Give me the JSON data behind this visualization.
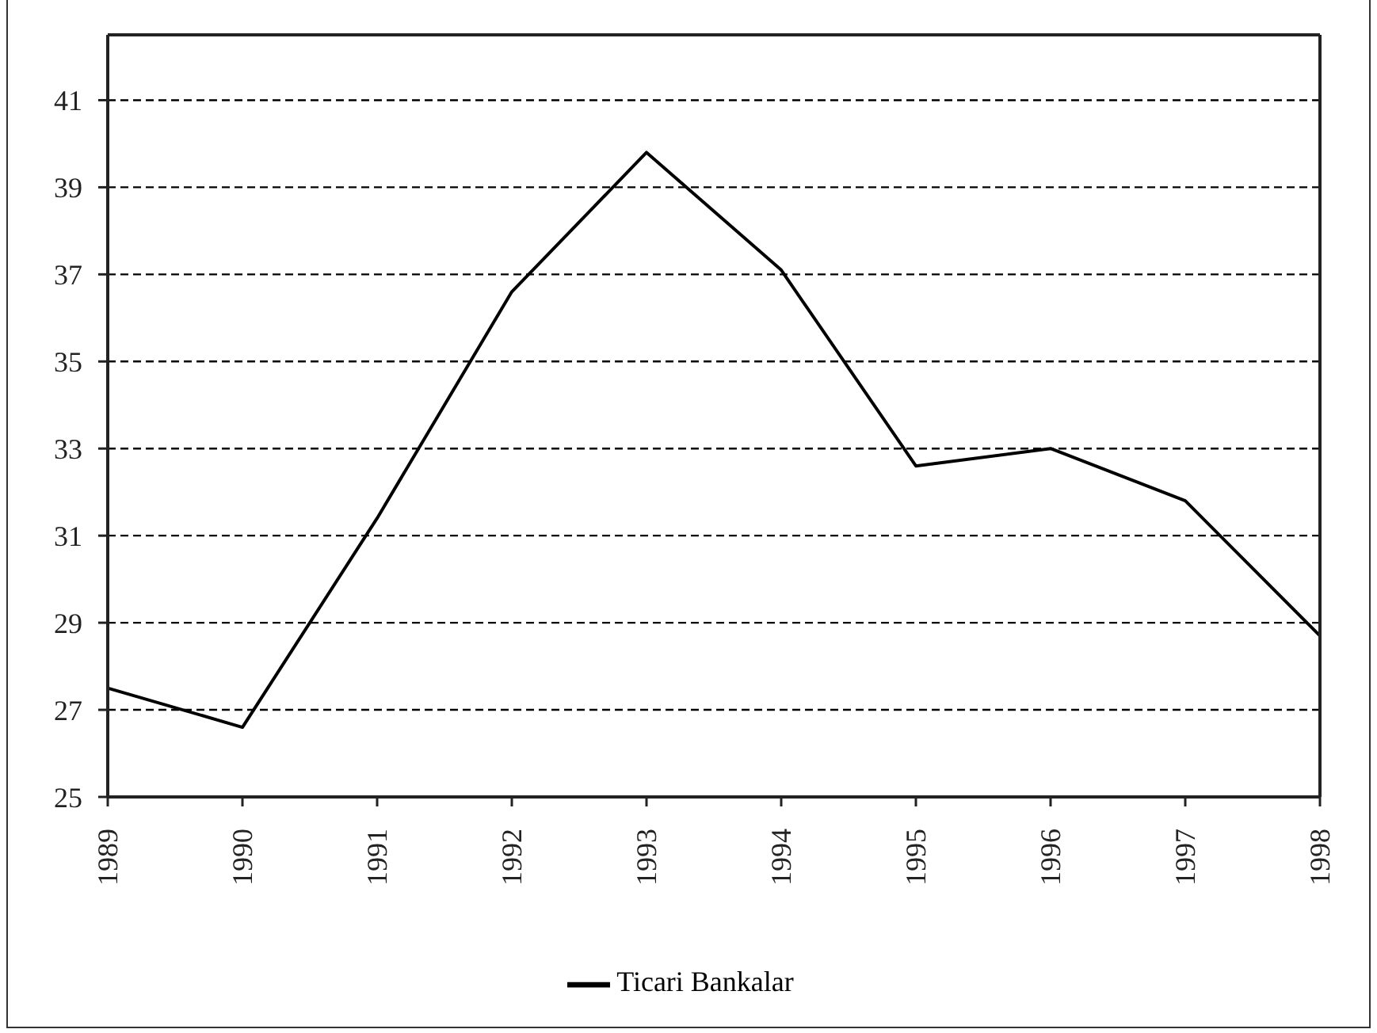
{
  "chart_data": {
    "type": "line",
    "categories": [
      "1989",
      "1990",
      "1991",
      "1992",
      "1993",
      "1994",
      "1995",
      "1996",
      "1997",
      "1998"
    ],
    "series": [
      {
        "name": "Ticari Bankalar",
        "color": "#000000",
        "values": [
          27.5,
          26.6,
          31.4,
          36.6,
          39.8,
          37.1,
          32.6,
          33.0,
          31.8,
          28.7
        ]
      }
    ],
    "ylim": [
      25,
      42.5
    ],
    "yticks": [
      25,
      27,
      29,
      31,
      33,
      35,
      37,
      39,
      41
    ],
    "grid": "y",
    "legend": "bottom",
    "marker": "none",
    "line_style": "solid"
  }
}
